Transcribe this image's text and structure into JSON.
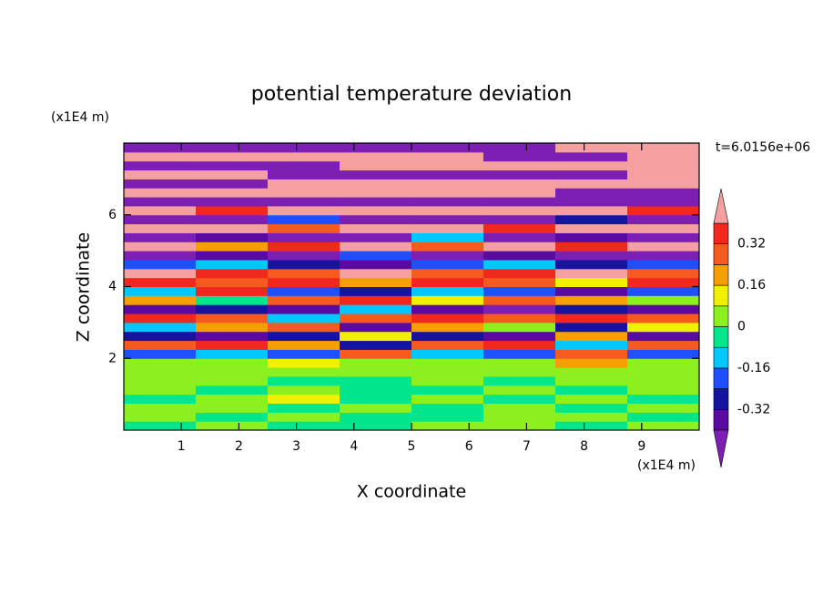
{
  "chart_data": {
    "type": "contour",
    "title": "potential temperature deviation",
    "xlabel": "X coordinate",
    "ylabel": "Z coordinate",
    "xunit": "(x1E4 m)",
    "yunit": "(x1E4 m)",
    "time_label": "t=6.0156e+06",
    "xlim": [
      0,
      10
    ],
    "ylim": [
      0,
      8
    ],
    "xticks": [
      1,
      2,
      3,
      4,
      5,
      6,
      7,
      8,
      9
    ],
    "yticks": [
      2,
      4,
      6
    ],
    "x": [
      0.625,
      1.875,
      3.125,
      4.375,
      5.625,
      6.875,
      8.125,
      9.375
    ],
    "y": [
      0.125,
      0.375,
      0.625,
      0.875,
      1.125,
      1.375,
      1.625,
      1.875,
      2.125,
      2.375,
      2.625,
      2.875,
      3.125,
      3.375,
      3.625,
      3.875,
      4.125,
      4.375,
      4.625,
      4.875,
      5.125,
      5.375,
      5.625,
      5.875,
      6.125,
      6.375,
      6.625,
      6.875,
      7.125,
      7.375,
      7.625,
      7.875
    ],
    "z": [
      [
        -0.04,
        0.04,
        -0.04,
        -0.04,
        0.04,
        0.04,
        -0.04,
        0.04
      ],
      [
        0.04,
        -0.04,
        0.04,
        -0.04,
        -0.04,
        0.04,
        0.04,
        -0.04
      ],
      [
        0.04,
        0.04,
        -0.04,
        0.04,
        -0.04,
        0.04,
        -0.04,
        0.04
      ],
      [
        -0.04,
        0.04,
        0.12,
        -0.04,
        0.04,
        -0.04,
        0.04,
        -0.04
      ],
      [
        0.04,
        -0.04,
        0.04,
        -0.04,
        -0.04,
        0.04,
        -0.04,
        0.04
      ],
      [
        0.04,
        0.04,
        -0.04,
        -0.04,
        0.04,
        -0.04,
        0.04,
        0.04
      ],
      [
        0.04,
        0.04,
        0.04,
        0.04,
        0.04,
        0.04,
        0.04,
        0.04
      ],
      [
        0.04,
        0.04,
        0.12,
        0.04,
        0.04,
        0.04,
        0.2,
        0.04
      ],
      [
        -0.2,
        -0.12,
        -0.2,
        0.28,
        -0.12,
        -0.2,
        0.28,
        -0.2
      ],
      [
        0.28,
        0.36,
        0.2,
        -0.28,
        0.28,
        0.36,
        -0.12,
        0.28
      ],
      [
        -0.28,
        -0.36,
        -0.28,
        0.12,
        -0.28,
        -0.36,
        0.2,
        -0.36
      ],
      [
        -0.12,
        0.2,
        0.28,
        -0.36,
        0.2,
        0.04,
        -0.28,
        0.12
      ],
      [
        0.36,
        0.28,
        -0.12,
        0.28,
        0.36,
        0.28,
        0.36,
        0.28
      ],
      [
        -0.36,
        -0.28,
        -0.36,
        -0.12,
        -0.36,
        -0.44,
        -0.28,
        -0.36
      ],
      [
        0.2,
        -0.04,
        0.28,
        0.36,
        0.12,
        0.28,
        0.2,
        0.04
      ],
      [
        -0.12,
        0.36,
        -0.2,
        -0.28,
        -0.12,
        -0.2,
        -0.36,
        -0.2
      ],
      [
        0.36,
        0.28,
        0.36,
        0.2,
        0.36,
        0.28,
        0.12,
        0.36
      ],
      [
        0.44,
        0.36,
        0.28,
        0.44,
        0.28,
        0.36,
        0.44,
        0.28
      ],
      [
        -0.2,
        -0.12,
        -0.28,
        -0.36,
        -0.2,
        -0.12,
        -0.28,
        -0.2
      ],
      [
        -0.44,
        -0.36,
        -0.44,
        -0.2,
        -0.44,
        -0.36,
        -0.44,
        -0.44
      ],
      [
        0.44,
        0.2,
        0.36,
        0.44,
        0.28,
        0.44,
        0.36,
        0.44
      ],
      [
        -0.44,
        -0.36,
        -0.44,
        -0.44,
        -0.12,
        -0.44,
        -0.36,
        -0.44
      ],
      [
        0.44,
        0.44,
        0.28,
        0.44,
        0.44,
        0.36,
        0.44,
        0.44
      ],
      [
        -0.44,
        -0.44,
        -0.2,
        -0.44,
        -0.44,
        -0.44,
        -0.28,
        -0.44
      ],
      [
        0.44,
        0.36,
        0.44,
        0.44,
        0.44,
        0.44,
        0.44,
        0.36
      ],
      [
        -0.44,
        -0.44,
        -0.44,
        -0.44,
        -0.44,
        -0.44,
        -0.44,
        -0.44
      ],
      [
        0.44,
        0.44,
        0.44,
        0.44,
        0.44,
        0.44,
        -0.44,
        -0.44
      ],
      [
        -0.44,
        -0.44,
        0.44,
        0.44,
        0.44,
        0.44,
        0.44,
        0.44
      ],
      [
        0.44,
        0.44,
        -0.44,
        -0.44,
        -0.44,
        -0.44,
        -0.44,
        0.44
      ],
      [
        -0.44,
        -0.44,
        -0.44,
        0.44,
        0.44,
        0.44,
        0.44,
        0.44
      ],
      [
        0.44,
        0.44,
        0.44,
        0.44,
        0.44,
        -0.44,
        -0.44,
        0.44
      ],
      [
        -0.44,
        -0.44,
        -0.44,
        -0.44,
        -0.44,
        -0.44,
        0.44,
        0.44
      ]
    ],
    "colorbar": {
      "levels": [
        -0.4,
        -0.32,
        -0.24,
        -0.16,
        -0.08,
        0,
        0.08,
        0.16,
        0.24,
        0.32,
        0.4
      ],
      "colors": [
        "#7d1eb4",
        "#5a0aa0",
        "#1414a0",
        "#1e50ff",
        "#00c8ff",
        "#00e68c",
        "#8cf01e",
        "#f0f000",
        "#f5a000",
        "#f55a1e",
        "#f0281e",
        "#f4a0a0"
      ],
      "ticks": [
        -0.32,
        -0.16,
        0,
        0.16,
        0.32
      ]
    }
  }
}
